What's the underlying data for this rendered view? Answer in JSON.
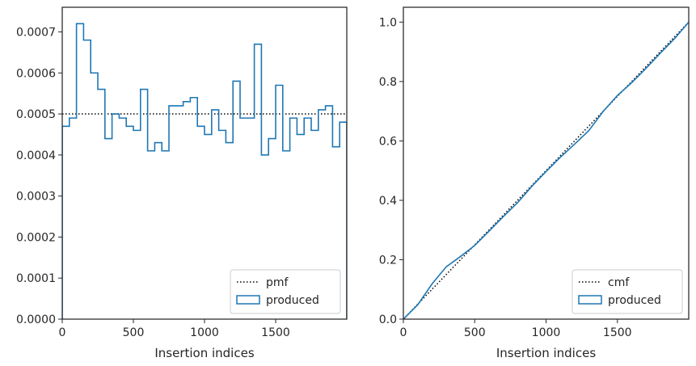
{
  "chart_data": [
    {
      "type": "line",
      "style": "step histogram",
      "xlabel": "Insertion indices",
      "ylabel": "",
      "xlim": [
        0,
        2000
      ],
      "ylim": [
        0,
        0.00076
      ],
      "xticks": [
        0,
        500,
        1000,
        1500
      ],
      "xtick_labels": [
        "0",
        "500",
        "1000",
        "1500"
      ],
      "yticks": [
        0,
        0.0001,
        0.0002,
        0.0003,
        0.0004,
        0.0005,
        0.0006,
        0.0007
      ],
      "ytick_labels": [
        "0.0000",
        "0.0001",
        "0.0002",
        "0.0003",
        "0.0004",
        "0.0005",
        "0.0006",
        "0.0007"
      ],
      "grid": false,
      "legend_position": "lower-right",
      "series": [
        {
          "name": "pmf",
          "style": "dotted",
          "color": "#000000",
          "x": [
            0,
            2000
          ],
          "values": [
            0.0005,
            0.0005
          ]
        },
        {
          "name": "produced",
          "style": "step",
          "color": "#1f77b4",
          "bin_edges": [
            0,
            50,
            100,
            150,
            200,
            250,
            300,
            350,
            400,
            450,
            500,
            550,
            600,
            650,
            700,
            750,
            800,
            850,
            900,
            950,
            1000,
            1050,
            1100,
            1150,
            1200,
            1250,
            1300,
            1350,
            1400,
            1450,
            1500,
            1550,
            1600,
            1650,
            1700,
            1750,
            1800,
            1850,
            1900,
            1950,
            2000
          ],
          "values": [
            0.00047,
            0.00049,
            0.00072,
            0.00068,
            0.0006,
            0.00056,
            0.00044,
            0.0005,
            0.00049,
            0.00047,
            0.00046,
            0.00056,
            0.00041,
            0.00043,
            0.00041,
            0.00052,
            0.00052,
            0.00053,
            0.00054,
            0.00047,
            0.00045,
            0.00051,
            0.00046,
            0.00043,
            0.00058,
            0.00049,
            0.00049,
            0.00067,
            0.0004,
            0.00044,
            0.00057,
            0.00041,
            0.00049,
            0.00045,
            0.00049,
            0.00046,
            0.00051,
            0.00052,
            0.00042,
            0.00048
          ]
        }
      ]
    },
    {
      "type": "line",
      "xlabel": "Insertion indices",
      "ylabel": "",
      "xlim": [
        0,
        2000
      ],
      "ylim": [
        0,
        1.05
      ],
      "xticks": [
        0,
        500,
        1000,
        1500
      ],
      "xtick_labels": [
        "0",
        "500",
        "1000",
        "1500"
      ],
      "yticks": [
        0,
        0.2,
        0.4,
        0.6,
        0.8,
        1.0
      ],
      "ytick_labels": [
        "0.0",
        "0.2",
        "0.4",
        "0.6",
        "0.8",
        "1.0"
      ],
      "grid": false,
      "legend_position": "lower-right",
      "series": [
        {
          "name": "cmf",
          "style": "dotted",
          "color": "#000000",
          "x": [
            0,
            2000
          ],
          "values": [
            0,
            1
          ]
        },
        {
          "name": "produced",
          "style": "solid",
          "color": "#1f77b4",
          "x": [
            0,
            100,
            200,
            300,
            400,
            500,
            600,
            700,
            800,
            900,
            1000,
            1100,
            1200,
            1300,
            1400,
            1500,
            1600,
            1700,
            1800,
            1900,
            2000
          ],
          "values": [
            0,
            0.048,
            0.118,
            0.176,
            0.211,
            0.248,
            0.296,
            0.345,
            0.392,
            0.447,
            0.497,
            0.545,
            0.589,
            0.635,
            0.699,
            0.753,
            0.796,
            0.844,
            0.895,
            0.944,
            1.0
          ]
        }
      ]
    }
  ]
}
